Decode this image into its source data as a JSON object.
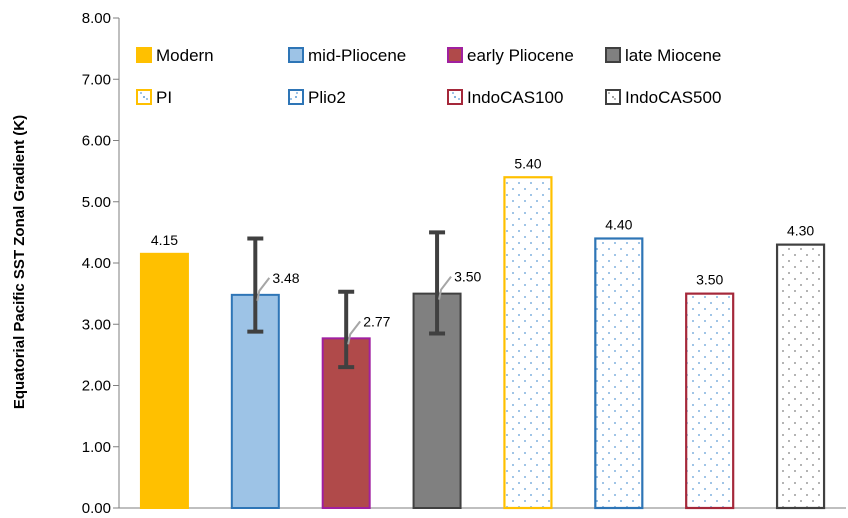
{
  "chart_data": {
    "type": "bar",
    "title": "",
    "xlabel": "",
    "ylabel": "Equatorial Pacific SST Zonal Gradient (K)",
    "ylim": [
      0,
      8
    ],
    "yticks": [
      "0.00",
      "1.00",
      "2.00",
      "3.00",
      "4.00",
      "5.00",
      "6.00",
      "7.00",
      "8.00"
    ],
    "grid": false,
    "legend_position": "top",
    "series": [
      {
        "name": "Modern",
        "value": 4.15,
        "label": "4.15",
        "fill": "#FFC000",
        "edge": "#FFC000",
        "pattern": "solid",
        "error": null
      },
      {
        "name": "mid-Pliocene",
        "value": 3.48,
        "label": "3.48",
        "fill": "#9DC3E6",
        "edge": "#2E75B6",
        "pattern": "solid",
        "error": [
          2.88,
          4.4
        ]
      },
      {
        "name": "early Pliocene",
        "value": 2.77,
        "label": "2.77",
        "fill": "#B04A4A",
        "edge": "#A020A0",
        "pattern": "solid",
        "error": [
          2.3,
          3.53
        ]
      },
      {
        "name": "late Miocene",
        "value": 3.5,
        "label": "3.50",
        "fill": "#808080",
        "edge": "#404040",
        "pattern": "solid",
        "error": [
          2.85,
          4.5
        ]
      },
      {
        "name": "PI",
        "value": 5.4,
        "label": "5.40",
        "fill": "#ffffff",
        "edge": "#FFC000",
        "pattern": "dots",
        "dot": "#5B9BD5",
        "error": null
      },
      {
        "name": "Plio2",
        "value": 4.4,
        "label": "4.40",
        "fill": "#ffffff",
        "edge": "#2E75B6",
        "pattern": "dots",
        "dot": "#5B9BD5",
        "error": null
      },
      {
        "name": "IndoCAS100",
        "value": 3.5,
        "label": "3.50",
        "fill": "#ffffff",
        "edge": "#A5283A",
        "pattern": "dots",
        "dot": "#5B9BD5",
        "error": null
      },
      {
        "name": "IndoCAS500",
        "value": 4.3,
        "label": "4.30",
        "fill": "#ffffff",
        "edge": "#404040",
        "pattern": "dots",
        "dot": "#7F7F7F",
        "error": null
      }
    ]
  }
}
